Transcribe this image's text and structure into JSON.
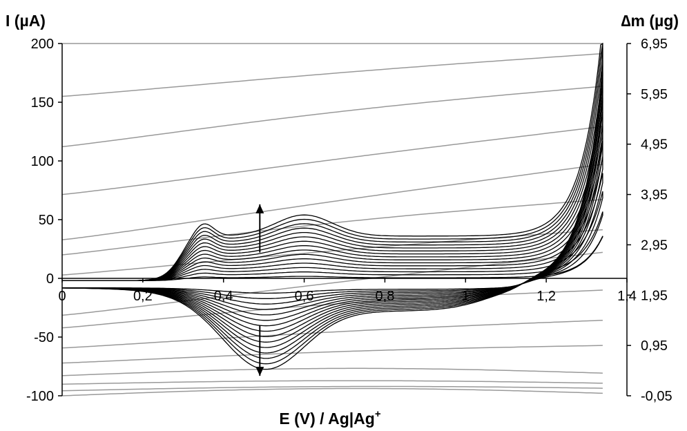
{
  "chart_data": {
    "type": "line",
    "title": "",
    "xlabel": "E (V) / Ag|Ag",
    "xlabel_sup": "+",
    "ylabel_left": "I (µA)",
    "ylabel_right": "∆m (µg)",
    "xlim": [
      0,
      1.4
    ],
    "ylim_left": [
      -100,
      200
    ],
    "ylim_right": [
      -0.05,
      6.95
    ],
    "x_ticks": [
      "0",
      "0,2",
      "0,4",
      "0,6",
      "0,8",
      "1",
      "1,2",
      "1,4"
    ],
    "y_left_ticks": [
      "200",
      "150",
      "100",
      "50",
      "0",
      "-50",
      "-100"
    ],
    "y_right_ticks": [
      "6,95",
      "5,95",
      "4,95",
      "3,95",
      "2,95",
      "1,95",
      "0,95",
      "-0,05"
    ],
    "grid": false,
    "legend": "none",
    "colors": {
      "current": "#000000",
      "mass": "#999999",
      "axis": "#000000"
    },
    "annotations": [
      {
        "type": "arrow",
        "x": 0.49,
        "from_current": 22,
        "to_current": 63,
        "direction": "up"
      },
      {
        "type": "arrow",
        "x": 0.49,
        "from_current": -40,
        "to_current": -83,
        "direction": "down"
      }
    ],
    "current_series": {
      "name": "I",
      "cycles": 15,
      "description_points": {
        "x": [
          0.0,
          0.2,
          0.27,
          0.35,
          0.45,
          0.6,
          0.75,
          1.0,
          1.12,
          1.2,
          1.28,
          1.34
        ],
        "forward_last_cycle": [
          -2,
          0,
          5,
          49,
          43,
          56,
          40,
          37,
          38,
          50,
          120,
          200
        ],
        "reverse_last_cycle": [
          -5,
          -12,
          -25,
          -45,
          -62,
          -52,
          -40,
          -30,
          -22,
          -3,
          40,
          200
        ]
      }
    },
    "mass_series": {
      "name": "∆m",
      "cycles": 15,
      "start_values_ug": [
        -0.05,
        0.05,
        0.18,
        0.35,
        0.6,
        0.9,
        1.3,
        1.55,
        2.35,
        2.75,
        3.05,
        3.95,
        4.9,
        5.9,
        6.95
      ],
      "end_values_ug": [
        0.0,
        0.1,
        0.2,
        0.4,
        0.95,
        1.45,
        2.05,
        2.8,
        3.25,
        3.85,
        4.55,
        5.3,
        6.1,
        6.75,
        6.95
      ]
    }
  }
}
